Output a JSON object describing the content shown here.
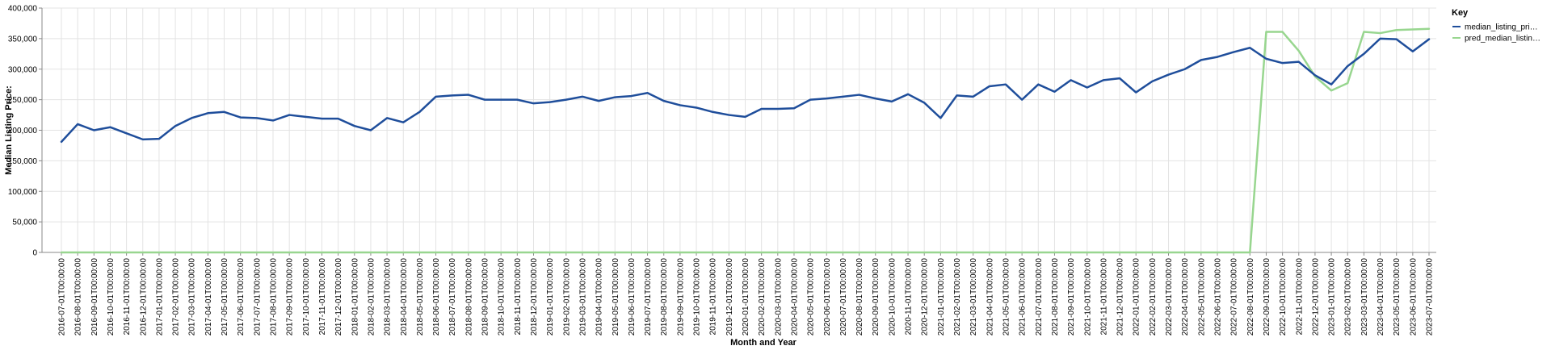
{
  "chart_data": {
    "type": "line",
    "xlabel": "Month and Year",
    "ylabel": "Median Listing Price:",
    "ylim": [
      0,
      400000
    ],
    "y_ticks": [
      0,
      50000,
      100000,
      150000,
      200000,
      250000,
      300000,
      350000,
      400000
    ],
    "y_tick_labels": [
      "0",
      "50,000",
      "100,000",
      "150,000",
      "200,000",
      "250,000",
      "300,000",
      "350,000",
      "400,000"
    ],
    "grid": true,
    "legend": {
      "title": "Key",
      "placement": "top-right",
      "items": [
        {
          "label": "median_listing_pri…",
          "color": "#1f4e9b"
        },
        {
          "label": "pred_median_listin…",
          "color": "#98d68f"
        }
      ]
    },
    "categories": [
      "2016-07-01T00:00:00",
      "2016-08-01T00:00:00",
      "2016-09-01T00:00:00",
      "2016-10-01T00:00:00",
      "2016-11-01T00:00:00",
      "2016-12-01T00:00:00",
      "2017-01-01T00:00:00",
      "2017-02-01T00:00:00",
      "2017-03-01T00:00:00",
      "2017-04-01T00:00:00",
      "2017-05-01T00:00:00",
      "2017-06-01T00:00:00",
      "2017-07-01T00:00:00",
      "2017-08-01T00:00:00",
      "2017-09-01T00:00:00",
      "2017-10-01T00:00:00",
      "2017-11-01T00:00:00",
      "2017-12-01T00:00:00",
      "2018-01-01T00:00:00",
      "2018-02-01T00:00:00",
      "2018-03-01T00:00:00",
      "2018-04-01T00:00:00",
      "2018-05-01T00:00:00",
      "2018-06-01T00:00:00",
      "2018-07-01T00:00:00",
      "2018-08-01T00:00:00",
      "2018-09-01T00:00:00",
      "2018-10-01T00:00:00",
      "2018-11-01T00:00:00",
      "2018-12-01T00:00:00",
      "2019-01-01T00:00:00",
      "2019-02-01T00:00:00",
      "2019-03-01T00:00:00",
      "2019-04-01T00:00:00",
      "2019-05-01T00:00:00",
      "2019-06-01T00:00:00",
      "2019-07-01T00:00:00",
      "2019-08-01T00:00:00",
      "2019-09-01T00:00:00",
      "2019-10-01T00:00:00",
      "2019-11-01T00:00:00",
      "2019-12-01T00:00:00",
      "2020-01-01T00:00:00",
      "2020-02-01T00:00:00",
      "2020-03-01T00:00:00",
      "2020-04-01T00:00:00",
      "2020-05-01T00:00:00",
      "2020-06-01T00:00:00",
      "2020-07-01T00:00:00",
      "2020-08-01T00:00:00",
      "2020-09-01T00:00:00",
      "2020-10-01T00:00:00",
      "2020-11-01T00:00:00",
      "2020-12-01T00:00:00",
      "2021-01-01T00:00:00",
      "2021-02-01T00:00:00",
      "2021-03-01T00:00:00",
      "2021-04-01T00:00:00",
      "2021-05-01T00:00:00",
      "2021-06-01T00:00:00",
      "2021-07-01T00:00:00",
      "2021-08-01T00:00:00",
      "2021-09-01T00:00:00",
      "2021-10-01T00:00:00",
      "2021-11-01T00:00:00",
      "2021-12-01T00:00:00",
      "2022-01-01T00:00:00",
      "2022-02-01T00:00:00",
      "2022-03-01T00:00:00",
      "2022-04-01T00:00:00",
      "2022-05-01T00:00:00",
      "2022-06-01T00:00:00",
      "2022-07-01T00:00:00",
      "2022-08-01T00:00:00",
      "2022-09-01T00:00:00",
      "2022-10-01T00:00:00",
      "2022-11-01T00:00:00",
      "2022-12-01T00:00:00",
      "2023-01-01T00:00:00",
      "2023-02-01T00:00:00",
      "2023-03-01T00:00:00",
      "2023-04-01T00:00:00",
      "2023-05-01T00:00:00",
      "2023-06-01T00:00:00",
      "2023-07-01T00:00:00"
    ],
    "series": [
      {
        "name": "median_listing_pri…",
        "color": "#1f4e9b",
        "values": [
          181000,
          210000,
          200000,
          205000,
          195000,
          185000,
          186000,
          207000,
          220000,
          228000,
          230000,
          221000,
          220000,
          216000,
          225000,
          222000,
          219000,
          219000,
          207000,
          200000,
          220000,
          213000,
          230000,
          255000,
          257000,
          258000,
          250000,
          250000,
          250000,
          244000,
          246000,
          250000,
          255000,
          248000,
          254000,
          256000,
          261000,
          248000,
          241000,
          237000,
          230000,
          225000,
          222000,
          235000,
          235000,
          236000,
          250000,
          252000,
          255000,
          258000,
          252000,
          247000,
          259000,
          245000,
          220000,
          257000,
          255000,
          272000,
          275000,
          250000,
          275000,
          263000,
          282000,
          270000,
          282000,
          285000,
          262000,
          280000,
          291000,
          300000,
          315000,
          320000,
          328000,
          335000,
          317000,
          310000,
          312000,
          290000,
          275000,
          305000,
          325000,
          350000,
          349000,
          329000,
          349000
        ]
      },
      {
        "name": "pred_median_listin…",
        "color": "#98d68f",
        "values": [
          0,
          0,
          0,
          0,
          0,
          0,
          0,
          0,
          0,
          0,
          0,
          0,
          0,
          0,
          0,
          0,
          0,
          0,
          0,
          0,
          0,
          0,
          0,
          0,
          0,
          0,
          0,
          0,
          0,
          0,
          0,
          0,
          0,
          0,
          0,
          0,
          0,
          0,
          0,
          0,
          0,
          0,
          0,
          0,
          0,
          0,
          0,
          0,
          0,
          0,
          0,
          0,
          0,
          0,
          0,
          0,
          0,
          0,
          0,
          0,
          0,
          0,
          0,
          0,
          0,
          0,
          0,
          0,
          0,
          0,
          0,
          0,
          0,
          0,
          361000,
          361000,
          330000,
          288000,
          265000,
          277000,
          361000,
          359000,
          364000,
          365000,
          366000
        ]
      }
    ]
  }
}
